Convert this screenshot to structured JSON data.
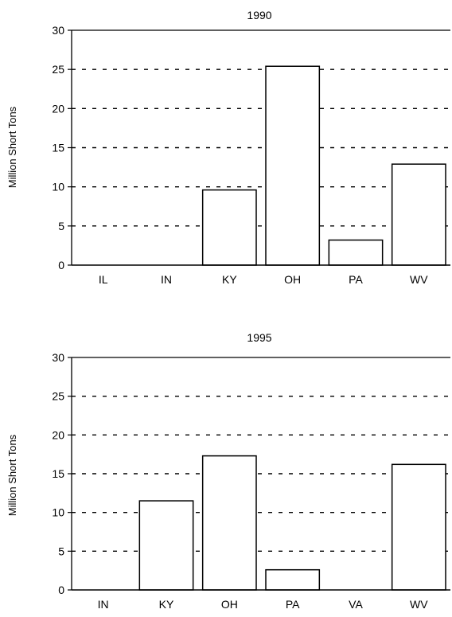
{
  "chart_data": [
    {
      "type": "bar",
      "title": "1990",
      "xlabel": "",
      "ylabel": "Million Short Tons",
      "categories": [
        "IL",
        "IN",
        "KY",
        "OH",
        "PA",
        "WV"
      ],
      "values": [
        0,
        0,
        9.6,
        25.4,
        3.2,
        12.9
      ],
      "ylim": [
        0,
        30
      ],
      "yticks": [
        0,
        5,
        10,
        15,
        20,
        25,
        30
      ],
      "grid": "dashed horizontal",
      "bar_fill": "#ffffff",
      "bar_stroke": "#000000"
    },
    {
      "type": "bar",
      "title": "1995",
      "xlabel": "",
      "ylabel": "Million Short Tons",
      "categories": [
        "IN",
        "KY",
        "OH",
        "PA",
        "VA",
        "WV"
      ],
      "values": [
        0,
        11.5,
        17.3,
        2.6,
        0,
        16.2
      ],
      "ylim": [
        0,
        30
      ],
      "yticks": [
        0,
        5,
        10,
        15,
        20,
        25,
        30
      ],
      "grid": "dashed horizontal",
      "bar_fill": "#ffffff",
      "bar_stroke": "#000000"
    }
  ]
}
